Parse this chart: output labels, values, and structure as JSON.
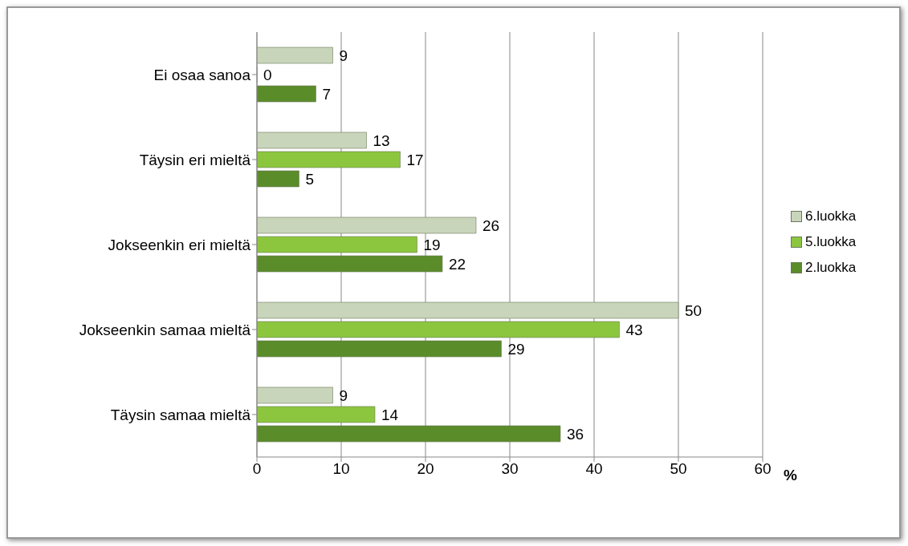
{
  "chart_data": {
    "type": "bar",
    "orientation": "horizontal",
    "categories": [
      "Ei osaa sanoa",
      "Täysin eri mieltä",
      "Jokseenkin eri mieltä",
      "Jokseenkin samaa mieltä",
      "Täysin samaa mieltä"
    ],
    "series": [
      {
        "name": "6.luokka",
        "color": "#c9d5ba",
        "values": [
          9,
          13,
          26,
          50,
          9
        ]
      },
      {
        "name": "5.luokka",
        "color": "#8cc63e",
        "values": [
          0,
          17,
          19,
          43,
          14
        ]
      },
      {
        "name": "2.luokka",
        "color": "#5b8c2a",
        "values": [
          7,
          5,
          22,
          29,
          36
        ]
      }
    ],
    "xlabel": "%",
    "xlim": [
      0,
      60
    ],
    "xticks": [
      0,
      10,
      20,
      30,
      40,
      50,
      60
    ],
    "grid": "x",
    "legend": "right",
    "data_labels": true
  }
}
